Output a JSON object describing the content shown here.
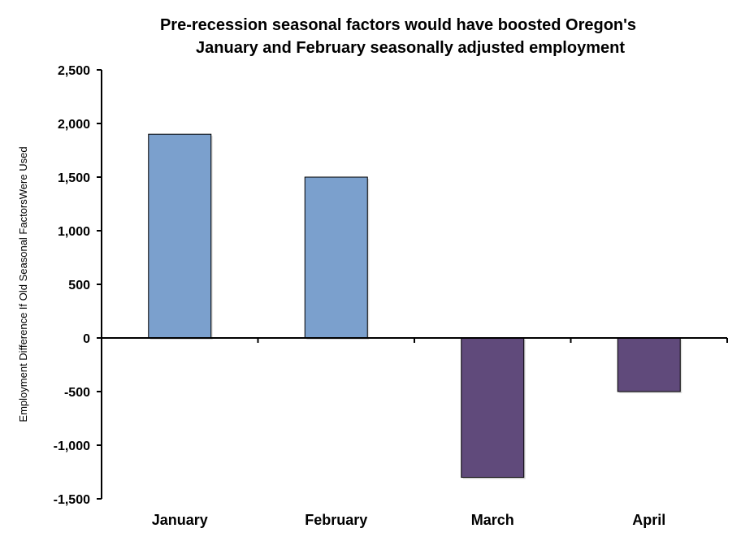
{
  "chart_data": {
    "type": "bar",
    "title_lines": [
      "Pre-recession seasonal factors would have boosted Oregon's",
      "January and February seasonally adjusted employment"
    ],
    "xlabel": "",
    "ylabel": "Employment Difference If Old Seasonal FactorsWere Used",
    "categories": [
      "January",
      "February",
      "March",
      "April"
    ],
    "values": [
      1900,
      1500,
      -1300,
      -500
    ],
    "ylim": [
      -1500,
      2500
    ],
    "yticks": [
      2500,
      2000,
      1500,
      1000,
      500,
      0,
      -500,
      -1000,
      -1500
    ],
    "ytick_labels": [
      "2,500",
      "2,000",
      "1,500",
      "1,000",
      "500",
      "0",
      "-500",
      "-1,000",
      "-1,500"
    ],
    "grid": false,
    "legend": "none",
    "colors": {
      "positive": "#7BA0CD",
      "negative": "#604A7B",
      "outline": "#000000"
    }
  }
}
